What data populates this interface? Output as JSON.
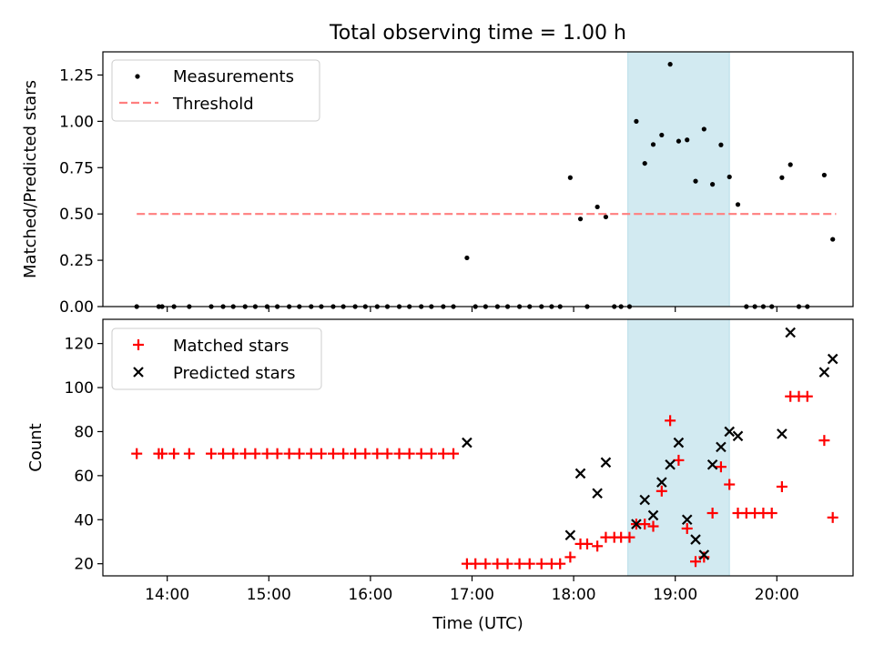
{
  "figure": {
    "title": "Total observing time = 1.00 h"
  },
  "chart_data": [
    {
      "type": "scatter",
      "panel": "top",
      "xlabel": "",
      "ylabel": "Matched/Predicted stars",
      "xlim": [
        "13:22",
        "20:45"
      ],
      "ylim": [
        0,
        1.375
      ],
      "yticks": [
        0.0,
        0.25,
        0.5,
        0.75,
        1.0,
        1.25
      ],
      "ytick_labels": [
        "0.00",
        "0.25",
        "0.50",
        "0.75",
        "1.00",
        "1.25"
      ],
      "xticks": [
        "14:00",
        "15:00",
        "16:00",
        "17:00",
        "18:00",
        "19:00",
        "20:00"
      ],
      "shaded_span": {
        "x": [
          "18:32",
          "19:32"
        ],
        "color": "#add8e6"
      },
      "legend": {
        "placement": "top-left",
        "entries": [
          "Measurements",
          "Threshold"
        ]
      },
      "series": [
        {
          "name": "Measurements",
          "marker": "dot",
          "color": "#000000",
          "points": [
            [
              "13:42",
              0
            ],
            [
              "13:55",
              0
            ],
            [
              "13:57",
              0
            ],
            [
              "14:04",
              0
            ],
            [
              "14:13",
              0
            ],
            [
              "14:26",
              0
            ],
            [
              "14:33",
              0
            ],
            [
              "14:39",
              0
            ],
            [
              "14:46",
              0
            ],
            [
              "14:52",
              0
            ],
            [
              "14:59",
              0
            ],
            [
              "15:05",
              0
            ],
            [
              "15:12",
              0
            ],
            [
              "15:18",
              0
            ],
            [
              "15:25",
              0
            ],
            [
              "15:31",
              0
            ],
            [
              "15:38",
              0
            ],
            [
              "15:44",
              0
            ],
            [
              "15:51",
              0
            ],
            [
              "15:57",
              0
            ],
            [
              "16:04",
              0
            ],
            [
              "16:10",
              0
            ],
            [
              "16:17",
              0
            ],
            [
              "16:23",
              0
            ],
            [
              "16:30",
              0
            ],
            [
              "16:36",
              0
            ],
            [
              "16:43",
              0
            ],
            [
              "16:49",
              0
            ],
            [
              "16:57",
              0.263
            ],
            [
              "17:02",
              0
            ],
            [
              "17:08",
              0
            ],
            [
              "17:15",
              0
            ],
            [
              "17:21",
              0
            ],
            [
              "17:28",
              0
            ],
            [
              "17:34",
              0
            ],
            [
              "17:41",
              0
            ],
            [
              "17:47",
              0
            ],
            [
              "17:52",
              0
            ],
            [
              "17:58",
              0.696
            ],
            [
              "18:04",
              0.473
            ],
            [
              "18:08",
              0
            ],
            [
              "18:14",
              0.538
            ],
            [
              "18:19",
              0.484
            ],
            [
              "18:24",
              0
            ],
            [
              "18:28",
              0
            ],
            [
              "18:33",
              0
            ],
            [
              "18:37",
              1.0
            ],
            [
              "18:42",
              0.773
            ],
            [
              "18:47",
              0.875
            ],
            [
              "18:52",
              0.926
            ],
            [
              "18:57",
              1.308
            ],
            [
              "19:02",
              0.893
            ],
            [
              "19:07",
              0.9
            ],
            [
              "19:12",
              0.677
            ],
            [
              "19:17",
              0.958
            ],
            [
              "19:22",
              0.66
            ],
            [
              "19:27",
              0.873
            ],
            [
              "19:32",
              0.7
            ],
            [
              "19:37",
              0.551
            ],
            [
              "19:42",
              0
            ],
            [
              "19:47",
              0
            ],
            [
              "19:52",
              0
            ],
            [
              "19:57",
              0
            ],
            [
              "20:03",
              0.696
            ],
            [
              "20:08",
              0.766
            ],
            [
              "20:13",
              0
            ],
            [
              "20:18",
              0
            ],
            [
              "20:28",
              0.71
            ],
            [
              "20:33",
              0.363
            ]
          ]
        },
        {
          "name": "Threshold",
          "marker": "dashed-line",
          "color": "#ff7f7f",
          "points": [
            [
              "13:42",
              0.5
            ],
            [
              "20:35",
              0.5
            ]
          ]
        }
      ]
    },
    {
      "type": "scatter",
      "panel": "bottom",
      "xlabel": "Time (UTC)",
      "ylabel": "Count",
      "xlim": [
        "13:22",
        "20:45"
      ],
      "ylim": [
        14.5,
        131
      ],
      "yticks": [
        20,
        40,
        60,
        80,
        100,
        120
      ],
      "ytick_labels": [
        "20",
        "40",
        "60",
        "80",
        "100",
        "120"
      ],
      "xticks": [
        "14:00",
        "15:00",
        "16:00",
        "17:00",
        "18:00",
        "19:00",
        "20:00"
      ],
      "shaded_span": {
        "x": [
          "18:32",
          "19:32"
        ],
        "color": "#add8e6"
      },
      "legend": {
        "placement": "top-left",
        "entries": [
          "Matched stars",
          "Predicted stars"
        ]
      },
      "series": [
        {
          "name": "Matched stars",
          "marker": "plus",
          "color": "#ff0000",
          "points": [
            [
              "13:42",
              70
            ],
            [
              "13:55",
              70
            ],
            [
              "13:57",
              70
            ],
            [
              "14:04",
              70
            ],
            [
              "14:13",
              70
            ],
            [
              "14:26",
              70
            ],
            [
              "14:33",
              70
            ],
            [
              "14:39",
              70
            ],
            [
              "14:46",
              70
            ],
            [
              "14:52",
              70
            ],
            [
              "14:59",
              70
            ],
            [
              "15:05",
              70
            ],
            [
              "15:12",
              70
            ],
            [
              "15:18",
              70
            ],
            [
              "15:25",
              70
            ],
            [
              "15:31",
              70
            ],
            [
              "15:38",
              70
            ],
            [
              "15:44",
              70
            ],
            [
              "15:51",
              70
            ],
            [
              "15:57",
              70
            ],
            [
              "16:04",
              70
            ],
            [
              "16:10",
              70
            ],
            [
              "16:17",
              70
            ],
            [
              "16:23",
              70
            ],
            [
              "16:30",
              70
            ],
            [
              "16:36",
              70
            ],
            [
              "16:43",
              70
            ],
            [
              "16:49",
              70
            ],
            [
              "16:57",
              20
            ],
            [
              "17:02",
              20
            ],
            [
              "17:08",
              20
            ],
            [
              "17:15",
              20
            ],
            [
              "17:21",
              20
            ],
            [
              "17:28",
              20
            ],
            [
              "17:34",
              20
            ],
            [
              "17:41",
              20
            ],
            [
              "17:47",
              20
            ],
            [
              "17:52",
              20
            ],
            [
              "17:58",
              23
            ],
            [
              "18:04",
              29
            ],
            [
              "18:08",
              29
            ],
            [
              "18:14",
              28
            ],
            [
              "18:19",
              32
            ],
            [
              "18:24",
              32
            ],
            [
              "18:28",
              32
            ],
            [
              "18:33",
              32
            ],
            [
              "18:37",
              38
            ],
            [
              "18:42",
              38
            ],
            [
              "18:47",
              37
            ],
            [
              "18:52",
              53
            ],
            [
              "18:57",
              85
            ],
            [
              "19:02",
              67
            ],
            [
              "19:07",
              36
            ],
            [
              "19:12",
              21
            ],
            [
              "19:17",
              23
            ],
            [
              "19:22",
              43
            ],
            [
              "19:27",
              64
            ],
            [
              "19:32",
              56
            ],
            [
              "19:37",
              43
            ],
            [
              "19:42",
              43
            ],
            [
              "19:47",
              43
            ],
            [
              "19:52",
              43
            ],
            [
              "19:57",
              43
            ],
            [
              "20:03",
              55
            ],
            [
              "20:08",
              96
            ],
            [
              "20:13",
              96
            ],
            [
              "20:18",
              96
            ],
            [
              "20:28",
              76
            ],
            [
              "20:33",
              41
            ]
          ]
        },
        {
          "name": "Predicted stars",
          "marker": "x",
          "color": "#000000",
          "points": [
            [
              "16:57",
              75
            ],
            [
              "17:58",
              33
            ],
            [
              "18:04",
              61
            ],
            [
              "18:14",
              52
            ],
            [
              "18:19",
              66
            ],
            [
              "18:37",
              38
            ],
            [
              "18:42",
              49
            ],
            [
              "18:47",
              42
            ],
            [
              "18:52",
              57
            ],
            [
              "18:57",
              65
            ],
            [
              "19:02",
              75
            ],
            [
              "19:07",
              40
            ],
            [
              "19:12",
              31
            ],
            [
              "19:17",
              24
            ],
            [
              "19:22",
              65
            ],
            [
              "19:27",
              73
            ],
            [
              "19:32",
              80
            ],
            [
              "19:37",
              78
            ],
            [
              "20:03",
              79
            ],
            [
              "20:08",
              125
            ],
            [
              "20:28",
              107
            ],
            [
              "20:33",
              113
            ]
          ]
        }
      ]
    }
  ]
}
